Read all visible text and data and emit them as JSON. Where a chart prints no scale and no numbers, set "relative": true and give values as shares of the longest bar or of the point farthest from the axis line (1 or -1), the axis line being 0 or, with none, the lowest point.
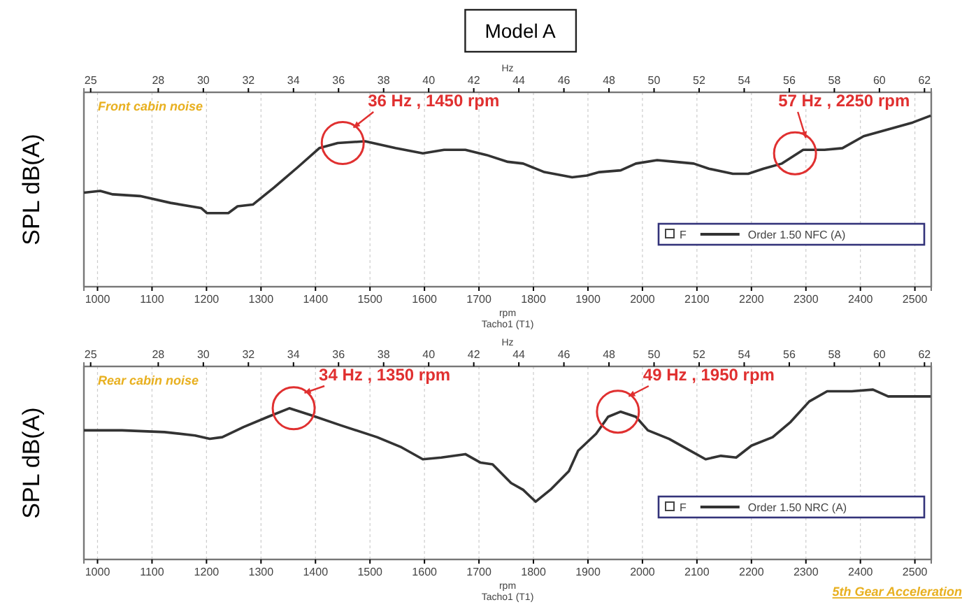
{
  "chart_data": [
    {
      "type": "line",
      "title": "Model A",
      "xlabel": "rpm",
      "x2label": "Hz",
      "ylabel": "SPL dB(A)",
      "relative": true,
      "grid": "x",
      "legend": "bottom right",
      "legend_title": "F",
      "xlim": [
        975,
        2530
      ],
      "xticks": [
        1000,
        1100,
        1200,
        1300,
        1400,
        1500,
        1600,
        1700,
        1800,
        1900,
        2000,
        2100,
        2200,
        2300,
        2400,
        2500
      ],
      "x2lim": [
        24.7,
        62.3
      ],
      "x2ticks": [
        25,
        28,
        30,
        32,
        34,
        36,
        38,
        40,
        42,
        44,
        46,
        48,
        50,
        52,
        54,
        56,
        58,
        60,
        62
      ],
      "x": [
        975,
        1005,
        1028,
        1078,
        1134,
        1190,
        1201,
        1240,
        1257,
        1285,
        1324,
        1368,
        1407,
        1441,
        1491,
        1547,
        1597,
        1636,
        1675,
        1714,
        1753,
        1781,
        1820,
        1871,
        1898,
        1921,
        1960,
        1988,
        2027,
        2060,
        2094,
        2122,
        2166,
        2194,
        2222,
        2256,
        2295,
        2334,
        2367,
        2406,
        2451,
        2496,
        2529
      ],
      "series": [
        {
          "name": "Order 1.50 NFC (A)",
          "color": "#333333",
          "values": [
            0.55,
            0.56,
            0.54,
            0.53,
            0.49,
            0.46,
            0.43,
            0.43,
            0.47,
            0.48,
            0.58,
            0.7,
            0.81,
            0.84,
            0.85,
            0.81,
            0.78,
            0.8,
            0.8,
            0.77,
            0.73,
            0.72,
            0.67,
            0.64,
            0.65,
            0.67,
            0.68,
            0.72,
            0.74,
            0.73,
            0.72,
            0.69,
            0.66,
            0.66,
            0.69,
            0.72,
            0.8,
            0.8,
            0.81,
            0.88,
            0.92,
            0.96,
            1
          ]
        }
      ],
      "annotations": [
        "Front cabin noise",
        "Tacho1 (T1)",
        {
          "text": "36 Hz , 1450 rpm",
          "x": 1450,
          "y": 0.84
        },
        {
          "text": "57 Hz , 2250 rpm",
          "x": 2280,
          "y": 0.78
        }
      ]
    },
    {
      "type": "line",
      "xlabel": "rpm",
      "x2label": "Hz",
      "ylabel": "SPL dB(A)",
      "relative": true,
      "grid": "x",
      "legend": "bottom right",
      "legend_title": "F",
      "xlim": [
        975,
        2530
      ],
      "xticks": [
        1000,
        1100,
        1200,
        1300,
        1400,
        1500,
        1600,
        1700,
        1800,
        1900,
        2000,
        2100,
        2200,
        2300,
        2400,
        2500
      ],
      "x2lim": [
        24.7,
        62.3
      ],
      "x2ticks": [
        25,
        28,
        30,
        32,
        34,
        36,
        38,
        40,
        42,
        44,
        46,
        48,
        50,
        52,
        54,
        56,
        58,
        60,
        62
      ],
      "x": [
        975,
        1045,
        1123,
        1179,
        1206,
        1229,
        1268,
        1313,
        1352,
        1391,
        1446,
        1513,
        1558,
        1597,
        1631,
        1675,
        1703,
        1725,
        1759,
        1781,
        1804,
        1831,
        1865,
        1882,
        1915,
        1937,
        1960,
        1988,
        2010,
        2049,
        2088,
        2116,
        2144,
        2172,
        2200,
        2239,
        2272,
        2306,
        2339,
        2384,
        2423,
        2451,
        2496,
        2529
      ],
      "series": [
        {
          "name": "Order 1.50 NRC (A)",
          "color": "#333333",
          "values": [
            0.76,
            0.76,
            0.75,
            0.73,
            0.71,
            0.72,
            0.78,
            0.84,
            0.89,
            0.85,
            0.79,
            0.72,
            0.66,
            0.59,
            0.6,
            0.62,
            0.57,
            0.56,
            0.45,
            0.41,
            0.34,
            0.41,
            0.52,
            0.64,
            0.74,
            0.84,
            0.87,
            0.84,
            0.76,
            0.71,
            0.64,
            0.59,
            0.61,
            0.6,
            0.67,
            0.72,
            0.81,
            0.93,
            0.99,
            0.99,
            1,
            0.96,
            0.96,
            0.96
          ]
        }
      ],
      "annotations": [
        "Rear cabin noise",
        "Tacho1 (T1)",
        {
          "text": "34 Hz , 1350 rpm",
          "x": 1360,
          "y": 0.89
        },
        {
          "text": "49 Hz , 1950 rpm",
          "x": 1955,
          "y": 0.87
        },
        "5th Gear Acceleration"
      ]
    }
  ]
}
